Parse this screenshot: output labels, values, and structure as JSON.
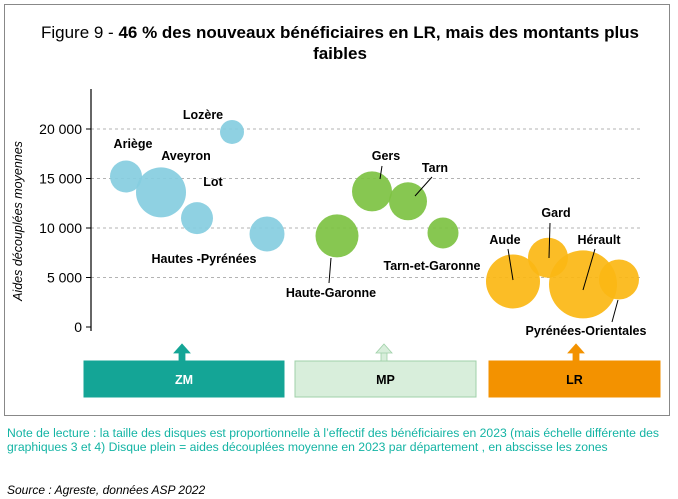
{
  "title": {
    "prefix": "Figure 9 - ",
    "bold": "46 % des nouveaux bénéficiaires en LR, mais des montants plus faibles"
  },
  "chart_data": {
    "type": "scatter",
    "ylabel": "Aides découplées moyennes",
    "ylim": [
      0,
      20000
    ],
    "yticks": [
      {
        "value": 0,
        "label": "0"
      },
      {
        "value": 5000,
        "label": "5 000"
      },
      {
        "value": 10000,
        "label": "10 000"
      },
      {
        "value": 15000,
        "label": "15 000"
      },
      {
        "value": 20000,
        "label": "20 000"
      }
    ],
    "grid": true,
    "zones": [
      {
        "id": "ZM",
        "label": "ZM",
        "color": "#14a596",
        "text_color": "#ffffff"
      },
      {
        "id": "MP",
        "label": "MP",
        "color": "#d8eedb",
        "text_color": "#000000"
      },
      {
        "id": "LR",
        "label": "LR",
        "color": "#f39200",
        "text_color": "#000000"
      }
    ],
    "points": [
      {
        "name": "Ariège",
        "zone": "ZM",
        "y": 15200,
        "size": 16,
        "color": "#86cde0"
      },
      {
        "name": "Aveyron",
        "zone": "ZM",
        "y": 13600,
        "size": 25,
        "color": "#86cde0"
      },
      {
        "name": "Lot",
        "zone": "ZM",
        "y": 11000,
        "size": 16,
        "color": "#86cde0"
      },
      {
        "name": "Lozère",
        "zone": "ZM",
        "y": 19700,
        "size": 12,
        "color": "#86cde0"
      },
      {
        "name": "Hautes -Pyrénées",
        "zone": "ZM",
        "y": 9400,
        "size": 17.5,
        "color": "#86cde0"
      },
      {
        "name": "Haute-Garonne",
        "zone": "MP",
        "y": 9200,
        "size": 21.5,
        "color": "#7dc242"
      },
      {
        "name": "Gers",
        "zone": "MP",
        "y": 13700,
        "size": 20,
        "color": "#7dc242"
      },
      {
        "name": "Tarn",
        "zone": "MP",
        "y": 12700,
        "size": 19,
        "color": "#7dc242"
      },
      {
        "name": "Tarn-et-Garonne",
        "zone": "MP",
        "y": 9500,
        "size": 15.5,
        "color": "#7dc242"
      },
      {
        "name": "Aude",
        "zone": "LR",
        "y": 4600,
        "size": 27,
        "color": "#fbb714"
      },
      {
        "name": "Gard",
        "zone": "LR",
        "y": 7000,
        "size": 20,
        "color": "#fbb714"
      },
      {
        "name": "Hérault",
        "zone": "LR",
        "y": 4300,
        "size": 34,
        "color": "#fbb714"
      },
      {
        "name": "Pyrénées-Orientales",
        "zone": "LR",
        "y": 4800,
        "size": 20,
        "color": "#fbb714"
      }
    ]
  },
  "note": "Note de  lecture : la taille des disques est proportionnelle à l’effectif des bénéficiaires en 2023 (mais échelle différente des graphiques 3 et 4) Disque plein = aides découplées moyenne en 2023 par département , en abscisse les zones",
  "source": "Source : Agreste, données ASP 2022"
}
